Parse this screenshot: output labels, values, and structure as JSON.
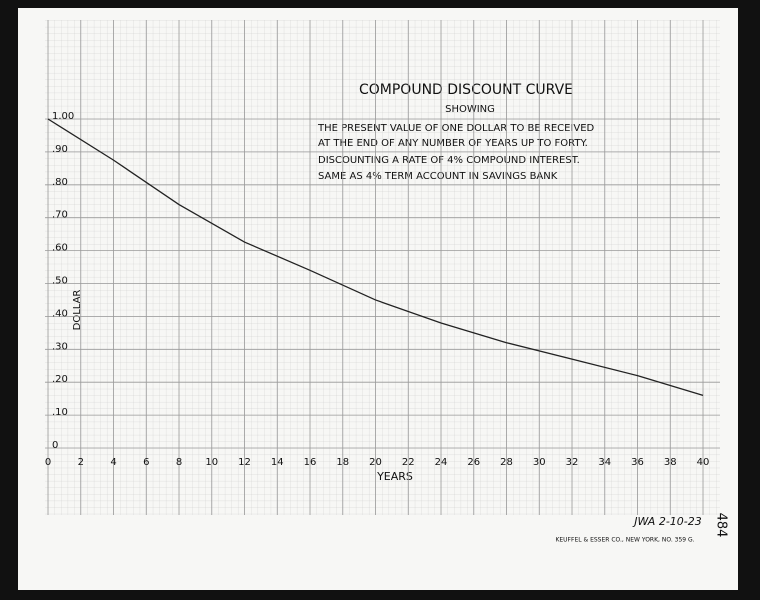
{
  "chart_data": {
    "type": "line",
    "title": "COMPOUND DISCOUNT CURVE",
    "subtitle": "SHOWING",
    "description": [
      "THE PRESENT VALUE OF ONE DOLLAR TO BE RECEIVED",
      "AT THE END OF ANY NUMBER OF YEARS UP TO FORTY.",
      "DISCOUNTING A RATE OF 4% COMPOUND INTEREST.",
      "SAME AS 4% TERM ACCOUNT IN SAVINGS BANK"
    ],
    "x_label": "YEARS",
    "y_label": "DOLLAR",
    "x": [
      0,
      4,
      8,
      12,
      16,
      20,
      24,
      28,
      32,
      36,
      40
    ],
    "series": [
      {
        "color": "#222222",
        "values": [
          1.0,
          0.875,
          0.74,
          0.626,
          0.54,
          0.45,
          0.38,
          0.32,
          0.27,
          0.22,
          0.16
        ]
      }
    ],
    "xlim": [
      0,
      40
    ],
    "ylim": [
      0,
      1
    ],
    "xticks": [
      0,
      2,
      4,
      6,
      8,
      10,
      12,
      14,
      16,
      18,
      20,
      22,
      24,
      26,
      28,
      30,
      32,
      34,
      36,
      38,
      40
    ],
    "yticks": [
      0,
      {
        "value": 0.1,
        "label": ".10"
      },
      {
        "value": 0.2,
        "label": ".20"
      },
      {
        "value": 0.3,
        "label": ".30"
      },
      {
        "value": 0.4,
        "label": ".40"
      },
      {
        "value": 0.5,
        "label": ".50"
      },
      {
        "value": 0.6,
        "label": ".60"
      },
      {
        "value": 0.7,
        "label": ".70"
      },
      {
        "value": 0.8,
        "label": ".80"
      },
      {
        "value": 0.9,
        "label": ".90"
      },
      {
        "value": 1,
        "label": "1.00"
      }
    ],
    "grid": true,
    "signature": "JWA 2-10-23",
    "sheet_number": "484",
    "maker": "KEUFFEL & ESSER CO., NEW YORK, NO. 359 G."
  }
}
